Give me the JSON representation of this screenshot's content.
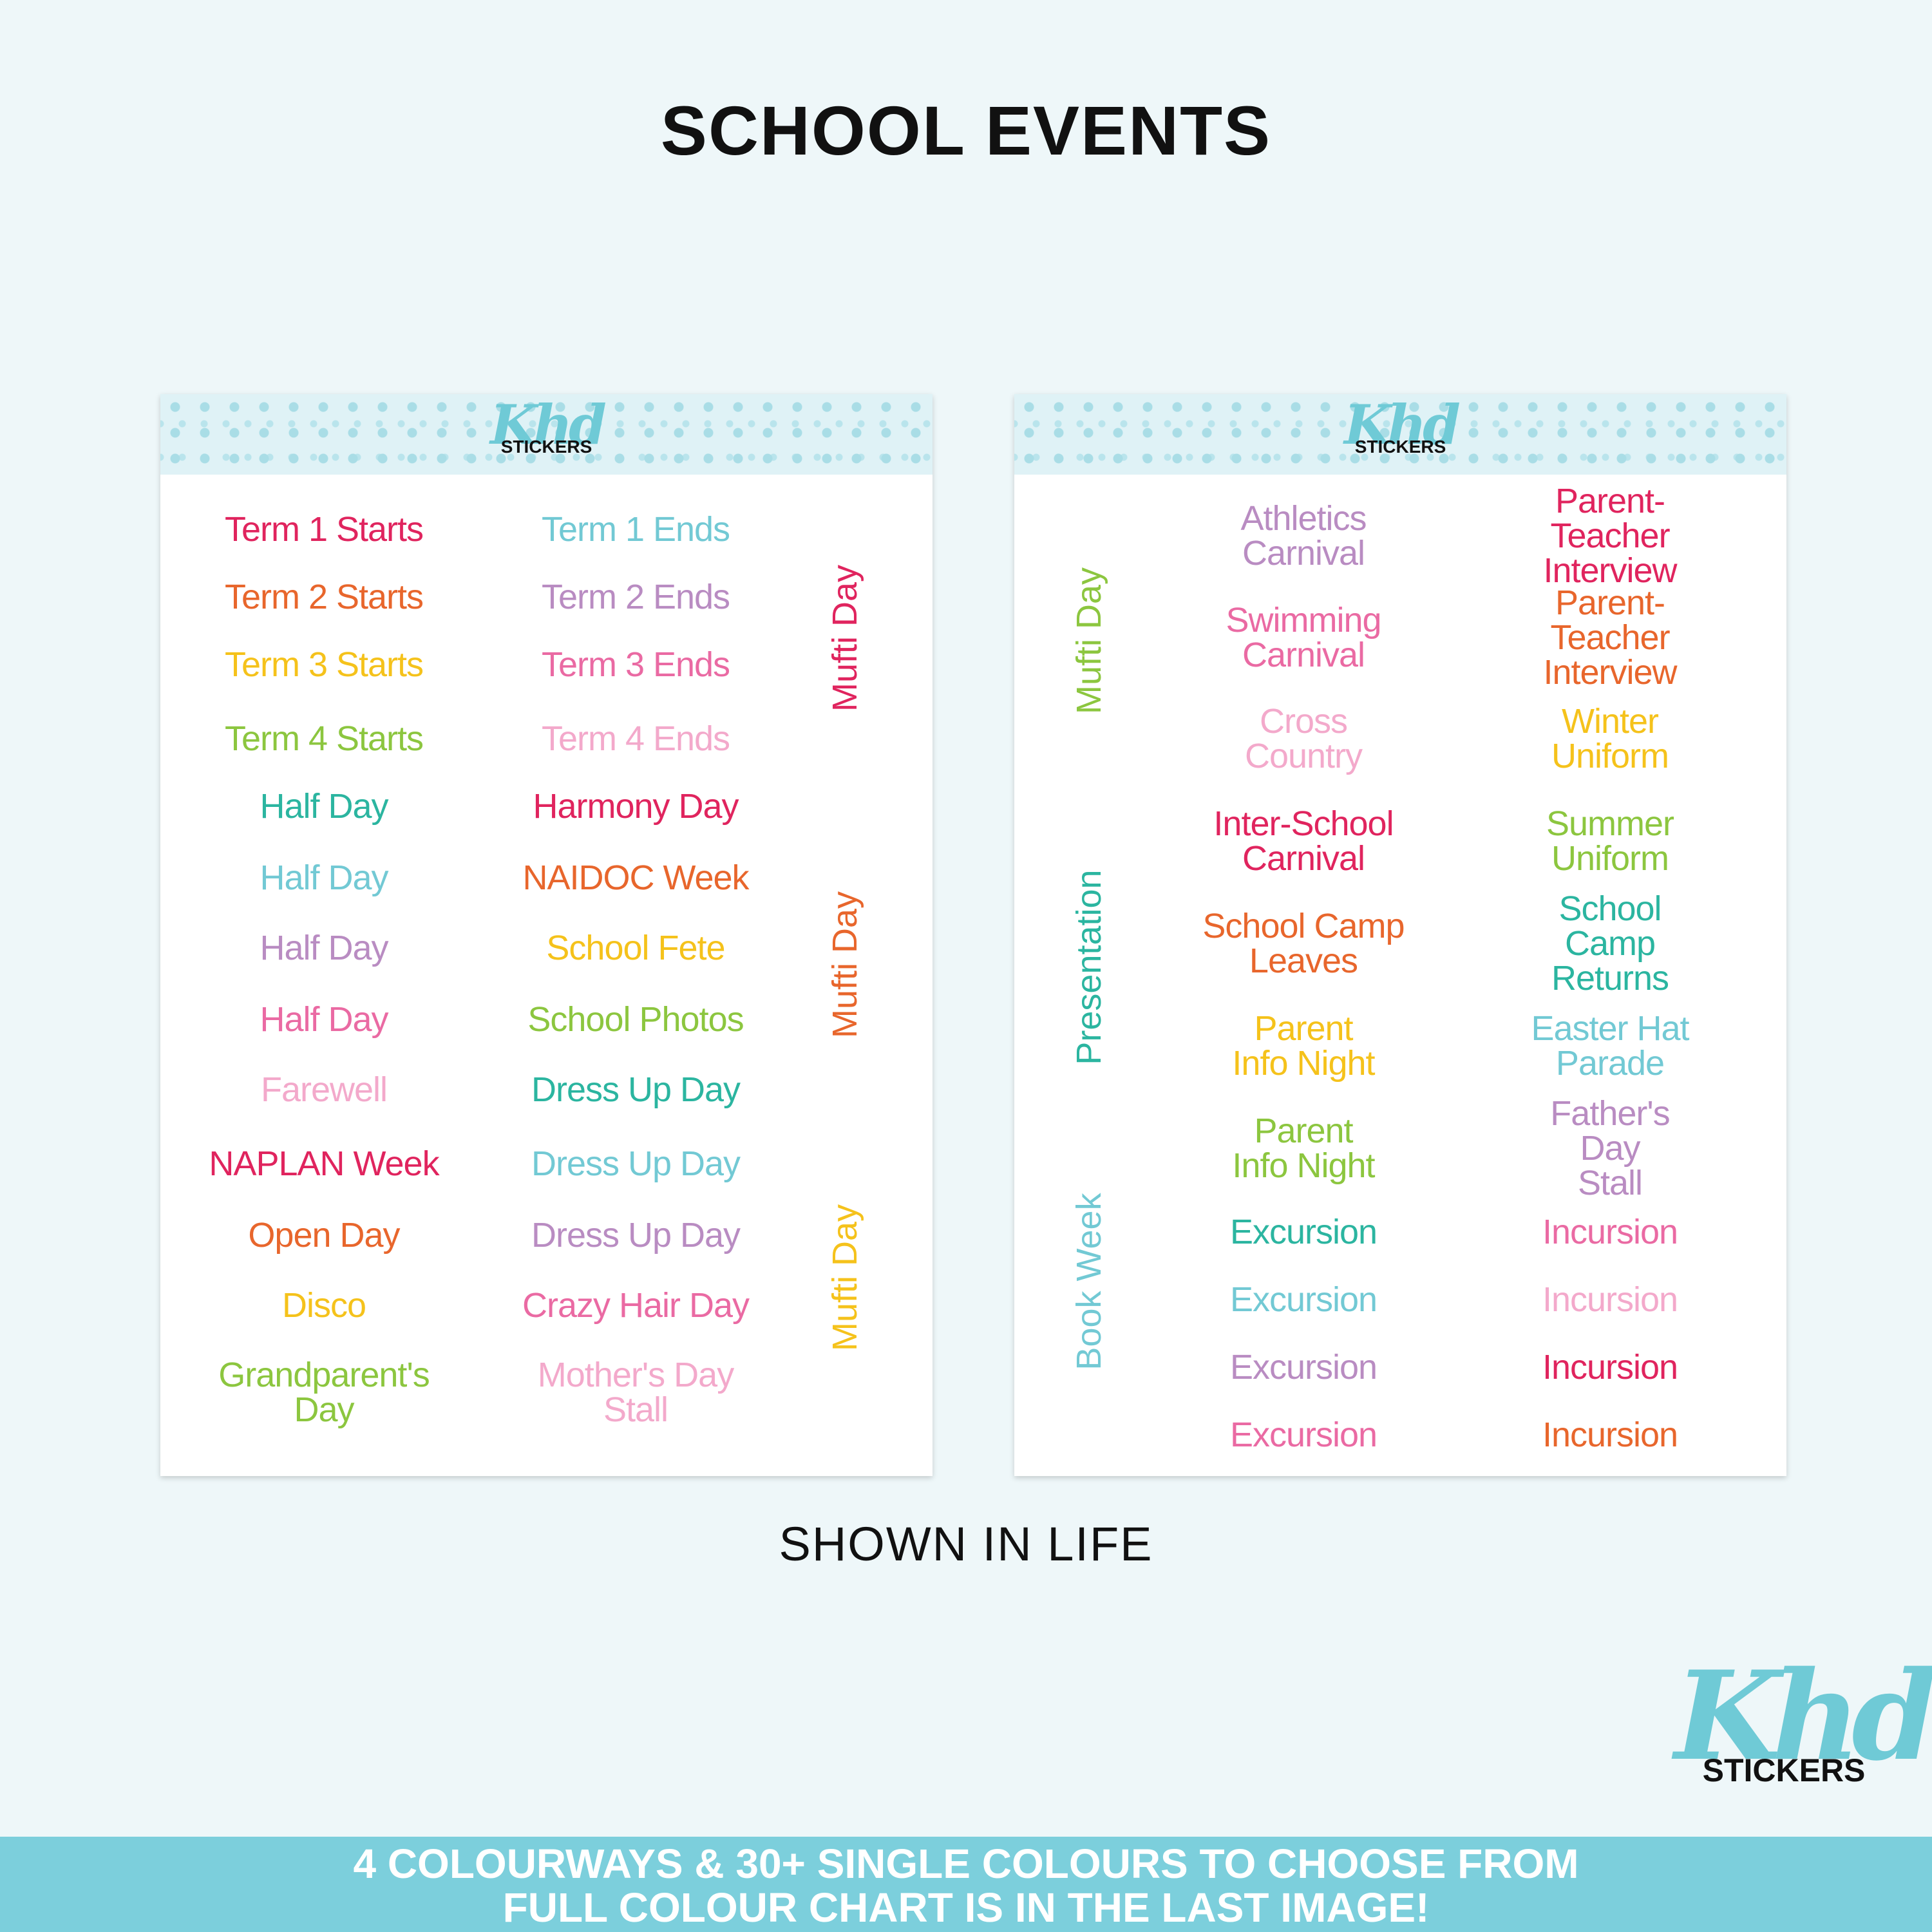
{
  "title": "SCHOOL EVENTS",
  "caption": "SHOWN IN LIFE",
  "logo": {
    "script": "Khd",
    "word": "STICKERS"
  },
  "banner": {
    "line1": "4 COLOURWAYS & 30+ SINGLE COLOURS TO CHOOSE FROM",
    "line2": "FULL COLOUR CHART IS IN THE LAST IMAGE!"
  },
  "colors": {
    "red": "#e0245e",
    "orange": "#e8662c",
    "yellow": "#f5c21b",
    "green": "#8cc63f",
    "teal": "#2bb5a0",
    "lightblue": "#72c9d4",
    "purple": "#b98cc2",
    "pink": "#ea6aa3",
    "lightpink": "#f3a9cb"
  },
  "sheets": [
    {
      "columns": [
        [
          {
            "text": "Term 1 Starts",
            "color": "red"
          },
          {
            "text": "Term 2 Starts",
            "color": "orange"
          },
          {
            "text": "Term 3 Starts",
            "color": "yellow"
          },
          {
            "text": "Term 4 Starts",
            "color": "green"
          },
          {
            "text": "Half Day",
            "color": "teal"
          },
          {
            "text": "Half Day",
            "color": "lightblue"
          },
          {
            "text": "Half Day",
            "color": "purple"
          },
          {
            "text": "Half Day",
            "color": "pink"
          },
          {
            "text": "Farewell",
            "color": "lightpink"
          },
          {
            "text": "NAPLAN Week",
            "color": "red"
          },
          {
            "text": "Open Day",
            "color": "orange"
          },
          {
            "text": "Disco",
            "color": "yellow"
          },
          {
            "text": "Grandparent's\nDay",
            "color": "green"
          }
        ],
        [
          {
            "text": "Term 1 Ends",
            "color": "lightblue"
          },
          {
            "text": "Term 2 Ends",
            "color": "purple"
          },
          {
            "text": "Term 3 Ends",
            "color": "pink"
          },
          {
            "text": "Term 4 Ends",
            "color": "lightpink"
          },
          {
            "text": "Harmony Day",
            "color": "red"
          },
          {
            "text": "NAIDOC Week",
            "color": "orange"
          },
          {
            "text": "School Fete",
            "color": "yellow"
          },
          {
            "text": "School Photos",
            "color": "green"
          },
          {
            "text": "Dress Up Day",
            "color": "teal"
          },
          {
            "text": "Dress Up Day",
            "color": "lightblue"
          },
          {
            "text": "Dress Up Day",
            "color": "purple"
          },
          {
            "text": "Crazy Hair Day",
            "color": "pink"
          },
          {
            "text": "Mother's Day\nStall",
            "color": "lightpink"
          }
        ]
      ],
      "vertical": [
        {
          "text": "Mufti Day",
          "color": "red"
        },
        {
          "text": "Mufti Day",
          "color": "orange"
        },
        {
          "text": "Mufti Day",
          "color": "yellow"
        }
      ]
    },
    {
      "columns": [
        [
          {
            "text": "Athletics\nCarnival",
            "color": "purple"
          },
          {
            "text": "Swimming\nCarnival",
            "color": "pink"
          },
          {
            "text": "Cross\nCountry",
            "color": "lightpink"
          },
          {
            "text": "Inter-School\nCarnival",
            "color": "red"
          },
          {
            "text": "School Camp\nLeaves",
            "color": "orange"
          },
          {
            "text": "Parent\nInfo Night",
            "color": "yellow"
          },
          {
            "text": "Parent\nInfo Night",
            "color": "green"
          },
          {
            "text": "Excursion",
            "color": "teal"
          },
          {
            "text": "Excursion",
            "color": "lightblue"
          },
          {
            "text": "Excursion",
            "color": "purple"
          },
          {
            "text": "Excursion",
            "color": "pink"
          }
        ],
        [
          {
            "text": "Parent-Teacher\nInterview",
            "color": "red"
          },
          {
            "text": "Parent-Teacher\nInterview",
            "color": "orange"
          },
          {
            "text": "Winter\nUniform",
            "color": "yellow"
          },
          {
            "text": "Summer\nUniform",
            "color": "green"
          },
          {
            "text": "School Camp\nReturns",
            "color": "teal"
          },
          {
            "text": "Easter Hat\nParade",
            "color": "lightblue"
          },
          {
            "text": "Father's Day\nStall",
            "color": "purple"
          },
          {
            "text": "Incursion",
            "color": "pink"
          },
          {
            "text": "Incursion",
            "color": "lightpink"
          },
          {
            "text": "Incursion",
            "color": "red"
          },
          {
            "text": "Incursion",
            "color": "orange"
          }
        ]
      ],
      "vertical": [
        {
          "text": "Mufti Day",
          "color": "green"
        },
        {
          "text": "Presentation",
          "color": "teal"
        },
        {
          "text": "Book Week",
          "color": "lightblue"
        }
      ]
    }
  ]
}
